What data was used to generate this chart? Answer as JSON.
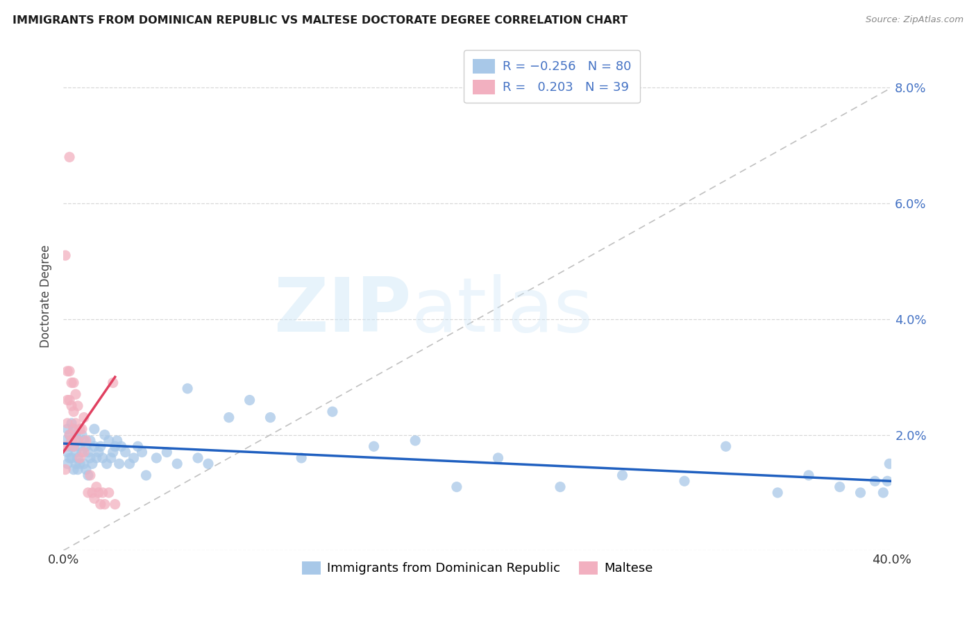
{
  "title": "IMMIGRANTS FROM DOMINICAN REPUBLIC VS MALTESE DOCTORATE DEGREE CORRELATION CHART",
  "source": "Source: ZipAtlas.com",
  "ylabel": "Doctorate Degree",
  "xlim": [
    0.0,
    0.4
  ],
  "ylim": [
    0.0,
    0.088
  ],
  "color_blue": "#a8c8e8",
  "color_pink": "#f2b0c0",
  "color_blue_line": "#2060c0",
  "color_pink_line": "#e04060",
  "color_diag_line": "#c0c0c0",
  "background_color": "#ffffff",
  "blue_points_x": [
    0.001,
    0.002,
    0.002,
    0.002,
    0.003,
    0.003,
    0.003,
    0.004,
    0.004,
    0.004,
    0.005,
    0.005,
    0.005,
    0.006,
    0.006,
    0.006,
    0.007,
    0.007,
    0.007,
    0.008,
    0.008,
    0.009,
    0.009,
    0.01,
    0.01,
    0.011,
    0.011,
    0.012,
    0.012,
    0.013,
    0.013,
    0.014,
    0.015,
    0.015,
    0.016,
    0.017,
    0.018,
    0.019,
    0.02,
    0.021,
    0.022,
    0.023,
    0.024,
    0.025,
    0.026,
    0.027,
    0.028,
    0.03,
    0.032,
    0.034,
    0.036,
    0.038,
    0.04,
    0.045,
    0.05,
    0.055,
    0.06,
    0.065,
    0.07,
    0.08,
    0.09,
    0.1,
    0.115,
    0.13,
    0.15,
    0.17,
    0.19,
    0.21,
    0.24,
    0.27,
    0.3,
    0.32,
    0.345,
    0.36,
    0.375,
    0.385,
    0.392,
    0.396,
    0.398,
    0.399
  ],
  "blue_points_y": [
    0.019,
    0.021,
    0.017,
    0.015,
    0.02,
    0.018,
    0.016,
    0.022,
    0.019,
    0.016,
    0.021,
    0.018,
    0.014,
    0.02,
    0.017,
    0.015,
    0.019,
    0.016,
    0.014,
    0.018,
    0.015,
    0.02,
    0.017,
    0.019,
    0.015,
    0.018,
    0.014,
    0.017,
    0.013,
    0.016,
    0.019,
    0.015,
    0.018,
    0.021,
    0.016,
    0.017,
    0.018,
    0.016,
    0.02,
    0.015,
    0.019,
    0.016,
    0.017,
    0.018,
    0.019,
    0.015,
    0.018,
    0.017,
    0.015,
    0.016,
    0.018,
    0.017,
    0.013,
    0.016,
    0.017,
    0.015,
    0.028,
    0.016,
    0.015,
    0.023,
    0.026,
    0.023,
    0.016,
    0.024,
    0.018,
    0.019,
    0.011,
    0.016,
    0.011,
    0.013,
    0.012,
    0.018,
    0.01,
    0.013,
    0.011,
    0.01,
    0.012,
    0.01,
    0.012,
    0.015
  ],
  "pink_points_x": [
    0.001,
    0.001,
    0.001,
    0.002,
    0.002,
    0.002,
    0.003,
    0.003,
    0.003,
    0.004,
    0.004,
    0.004,
    0.005,
    0.005,
    0.005,
    0.005,
    0.006,
    0.006,
    0.007,
    0.007,
    0.008,
    0.008,
    0.009,
    0.01,
    0.01,
    0.011,
    0.012,
    0.013,
    0.014,
    0.015,
    0.016,
    0.017,
    0.018,
    0.019,
    0.02,
    0.022,
    0.025,
    0.024,
    0.003
  ],
  "pink_points_y": [
    0.051,
    0.018,
    0.014,
    0.031,
    0.026,
    0.022,
    0.031,
    0.026,
    0.02,
    0.029,
    0.025,
    0.019,
    0.029,
    0.024,
    0.018,
    0.021,
    0.027,
    0.022,
    0.025,
    0.019,
    0.021,
    0.016,
    0.021,
    0.023,
    0.017,
    0.019,
    0.01,
    0.013,
    0.01,
    0.009,
    0.011,
    0.01,
    0.008,
    0.01,
    0.008,
    0.01,
    0.008,
    0.029,
    0.068
  ],
  "blue_trend_x": [
    0.0,
    0.4
  ],
  "blue_trend_y": [
    0.0185,
    0.012
  ],
  "pink_trend_x": [
    0.0,
    0.025
  ],
  "pink_trend_y": [
    0.017,
    0.03
  ]
}
